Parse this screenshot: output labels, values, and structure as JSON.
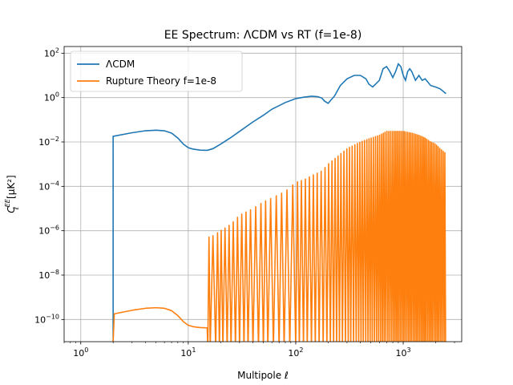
{
  "chart_data": {
    "type": "line",
    "title": "EE Spectrum: ΛCDM vs RT (f=1e-8)",
    "xlabel": "Multipole ℓ",
    "ylabel_base": "C",
    "ylabel_sub": "ℓ",
    "ylabel_sup": "EE",
    "ylabel_unit": "[μK²]",
    "x_scale": "log",
    "y_scale": "log",
    "xlim": [
      0.7,
      3500
    ],
    "ylim": [
      1e-11,
      200
    ],
    "grid": true,
    "legend_position": "upper left",
    "x_ticks": [
      {
        "value": 1,
        "base": "10",
        "exp": "0"
      },
      {
        "value": 10,
        "base": "10",
        "exp": "1"
      },
      {
        "value": 100,
        "base": "10",
        "exp": "2"
      },
      {
        "value": 1000,
        "base": "10",
        "exp": "3"
      }
    ],
    "y_ticks": [
      {
        "value": 1e-10,
        "base": "10",
        "exp": "−10"
      },
      {
        "value": 1e-08,
        "base": "10",
        "exp": "−8"
      },
      {
        "value": 1e-06,
        "base": "10",
        "exp": "−6"
      },
      {
        "value": 0.0001,
        "base": "10",
        "exp": "−4"
      },
      {
        "value": 0.01,
        "base": "10",
        "exp": "−2"
      },
      {
        "value": 1,
        "base": "10",
        "exp": "0"
      },
      {
        "value": 100,
        "base": "10",
        "exp": "2"
      }
    ],
    "series": [
      {
        "name": "ΛCDM",
        "color": "#1f77b4",
        "x": [
          2,
          2,
          3,
          4,
          5,
          6,
          7,
          8,
          9,
          10,
          11,
          12,
          13,
          15,
          17,
          20,
          25,
          30,
          40,
          50,
          60,
          80,
          100,
          120,
          140,
          160,
          175,
          185,
          200,
          230,
          260,
          300,
          350,
          400,
          450,
          480,
          520,
          600,
          650,
          700,
          750,
          800,
          850,
          900,
          950,
          1000,
          1050,
          1100,
          1150,
          1200,
          1300,
          1400,
          1500,
          1600,
          1800,
          2000,
          2200,
          2500
        ],
        "y": [
          1e-11,
          0.018,
          0.026,
          0.032,
          0.034,
          0.032,
          0.025,
          0.015,
          0.008,
          0.0055,
          0.0048,
          0.0045,
          0.0043,
          0.0042,
          0.005,
          0.008,
          0.016,
          0.03,
          0.08,
          0.16,
          0.3,
          0.6,
          0.9,
          1.05,
          1.15,
          1.1,
          0.95,
          0.7,
          0.55,
          1.2,
          3.5,
          7,
          10,
          10,
          7,
          4,
          3,
          6,
          20,
          25,
          15,
          8,
          15,
          33,
          25,
          10,
          6,
          15,
          20,
          15,
          6,
          10,
          6,
          7,
          3.5,
          3,
          2.5,
          1.5
        ]
      },
      {
        "name": "Rupture Theory f=1e-8",
        "color": "#ff7f0e",
        "oscillating": true,
        "envelope_x": [
          2,
          2.05,
          3,
          4,
          5,
          6,
          7,
          8,
          9,
          10,
          11,
          12,
          13,
          15,
          15.3,
          17,
          20,
          25,
          30,
          40,
          50,
          60,
          80,
          100,
          120,
          140,
          160,
          175,
          200,
          300,
          400,
          500,
          600,
          700,
          800,
          900,
          1000,
          1200,
          1400,
          1600,
          1800,
          2000,
          2200,
          2500
        ],
        "envelope_y": [
          1e-11,
          1.8e-10,
          2.6e-10,
          3.2e-10,
          3.4e-10,
          3.2e-10,
          2.5e-10,
          1.5e-10,
          8e-11,
          5.5e-11,
          4.8e-11,
          4.5e-11,
          4.3e-11,
          4.2e-11,
          5e-07,
          6e-07,
          1e-06,
          2e-06,
          5e-06,
          1e-05,
          2e-05,
          3e-05,
          6e-05,
          0.00015,
          0.0002,
          0.0003,
          0.0004,
          0.0005,
          0.001,
          0.005,
          0.01,
          0.015,
          0.02,
          0.03,
          0.03,
          0.03,
          0.03,
          0.025,
          0.02,
          0.015,
          0.01,
          0.008,
          0.005,
          0.003
        ],
        "oscillation_nodes": [
          16,
          18,
          19.5,
          21,
          23,
          25,
          27.5,
          30,
          33,
          36,
          40,
          45,
          50,
          55,
          62,
          70,
          78,
          88,
          100,
          108,
          118,
          128,
          140,
          152,
          165,
          180,
          195,
          210,
          225,
          240,
          255,
          272,
          290,
          308,
          325,
          345,
          365,
          385,
          405,
          425,
          448,
          470,
          492,
          515,
          540,
          565,
          590,
          615,
          640,
          665,
          690,
          720,
          750,
          780,
          810,
          840,
          870,
          900,
          935,
          970,
          1005,
          1040,
          1080,
          1120,
          1160,
          1200,
          1245,
          1290,
          1335,
          1380,
          1430,
          1480,
          1530,
          1580,
          1630,
          1690,
          1750,
          1810,
          1870,
          1940,
          2010,
          2080,
          2150,
          2230,
          2310,
          2400,
          2480
        ]
      }
    ]
  }
}
